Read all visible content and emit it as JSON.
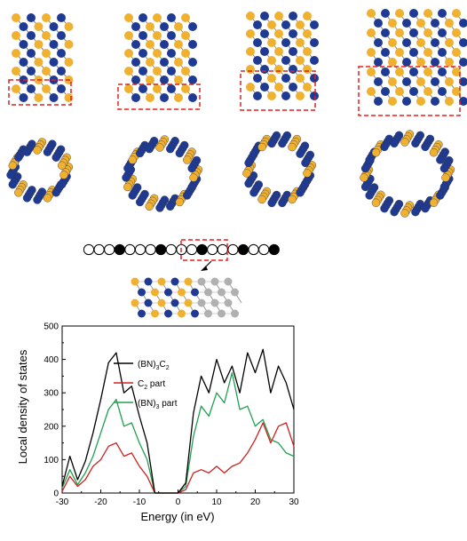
{
  "colors": {
    "nitrogen_atom": "#1f3a93",
    "boron_atom": "#f0b030",
    "carbon_atom": "#b0b0b0",
    "highlight_box": "#e02020",
    "total_series": "#000000",
    "c2_series": "#d02020",
    "bn_series": "#20a050"
  },
  "chart_data": {
    "type": "line",
    "xlabel": "Energy (in eV)",
    "ylabel": "Local density of states",
    "xlim": [
      -30,
      30
    ],
    "ylim": [
      0,
      500
    ],
    "x_ticks": [
      "-30",
      "-20",
      "-10",
      "0",
      "10",
      "20",
      "30"
    ],
    "y_ticks": [
      "0",
      "100",
      "200",
      "300",
      "400",
      "500"
    ],
    "grid": false,
    "legend_position": "upper-center",
    "x": [
      -30,
      -28,
      -26,
      -24,
      -22,
      -20,
      -18,
      -16,
      -14,
      -12,
      -10,
      -8,
      -6,
      -4,
      -2,
      0,
      2,
      4,
      6,
      8,
      10,
      12,
      14,
      16,
      18,
      20,
      22,
      24,
      26,
      28,
      30
    ],
    "series": [
      {
        "name": "(BN)3C2",
        "color": "#000000",
        "values": [
          20,
          110,
          40,
          95,
          180,
          280,
          390,
          420,
          300,
          320,
          230,
          150,
          0,
          0,
          0,
          0,
          30,
          240,
          350,
          300,
          400,
          330,
          380,
          300,
          420,
          360,
          430,
          300,
          380,
          330,
          250
        ]
      },
      {
        "name": "C2 part",
        "color": "#d02020",
        "values": [
          5,
          50,
          20,
          40,
          80,
          100,
          140,
          150,
          110,
          120,
          80,
          50,
          0,
          0,
          0,
          0,
          10,
          60,
          70,
          60,
          80,
          60,
          80,
          90,
          120,
          160,
          210,
          150,
          200,
          210,
          140
        ]
      },
      {
        "name": "(BN)3 part",
        "color": "#20a050",
        "values": [
          15,
          70,
          25,
          60,
          110,
          180,
          250,
          280,
          200,
          210,
          150,
          100,
          0,
          0,
          0,
          0,
          20,
          170,
          260,
          230,
          300,
          270,
          360,
          250,
          260,
          200,
          220,
          160,
          150,
          120,
          110
        ]
      }
    ]
  }
}
